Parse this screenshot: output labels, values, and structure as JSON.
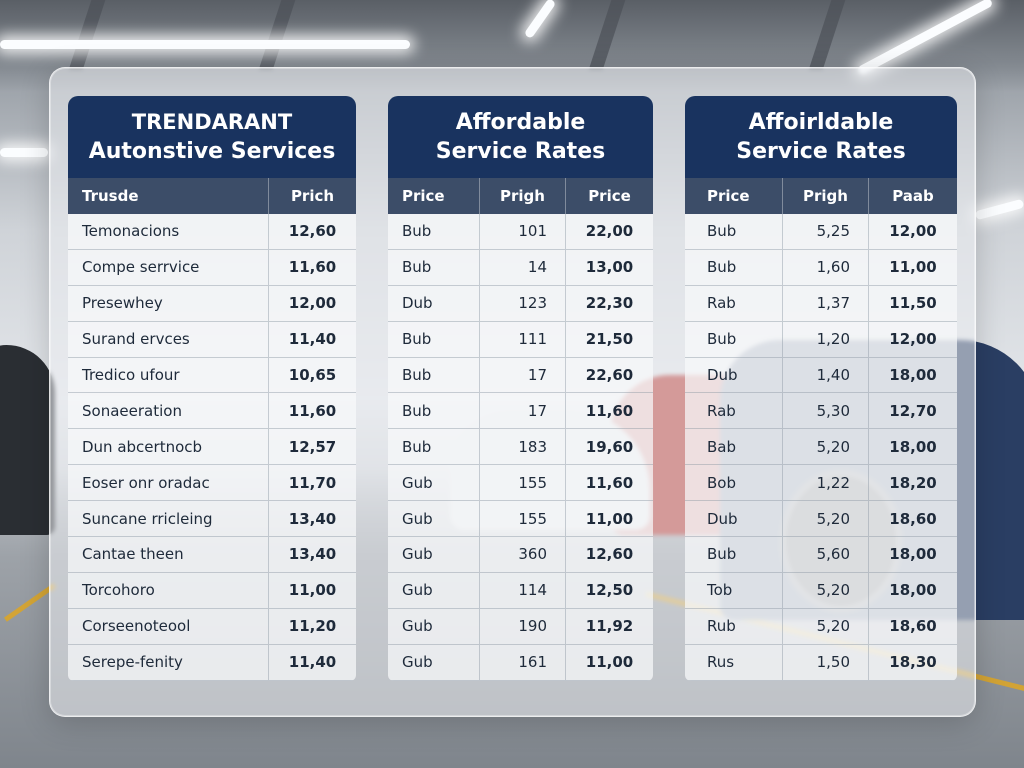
{
  "colors": {
    "header_navy": "#19335f",
    "subheader_slate": "#3c4d68",
    "cell_text": "#1e2a3a"
  },
  "cards": [
    {
      "title_line1": "Trendarant",
      "title_line2": "Autonstive Services",
      "headers": [
        "Trusde",
        "Prich"
      ],
      "rows": [
        [
          "Temonacions",
          "12,60"
        ],
        [
          "Compe serrvice",
          "11,60"
        ],
        [
          "Presewhey",
          "12,00"
        ],
        [
          "Surand ervces",
          "11,40"
        ],
        [
          "Tredico ufour",
          "10,65"
        ],
        [
          "Sonaeeration",
          "11,60"
        ],
        [
          "Dun abcertnocb",
          "12,57"
        ],
        [
          "Eoser onr oradac",
          "11,70"
        ],
        [
          "Suncane rricleing",
          "13,40"
        ],
        [
          "Cantae theen",
          "13,40"
        ],
        [
          "Torcohoro",
          "11,00"
        ],
        [
          "Corseenoteool",
          "11,20"
        ],
        [
          "Serepe-fenity",
          "11,40"
        ]
      ]
    },
    {
      "title_line1": "Affordable",
      "title_line2": "Service Rates",
      "headers": [
        "Price",
        "Prigh",
        "Price"
      ],
      "rows": [
        [
          "Bub",
          "101",
          "22,00"
        ],
        [
          "Bub",
          "14",
          "13,00"
        ],
        [
          "Dub",
          "123",
          "22,30"
        ],
        [
          "Bub",
          "111",
          "21,50"
        ],
        [
          "Bub",
          "17",
          "22,60"
        ],
        [
          "Bub",
          "17",
          "11,60"
        ],
        [
          "Bub",
          "183",
          "19,60"
        ],
        [
          "Gub",
          "155",
          "11,60"
        ],
        [
          "Gub",
          "155",
          "11,00"
        ],
        [
          "Gub",
          "360",
          "12,60"
        ],
        [
          "Gub",
          "114",
          "12,50"
        ],
        [
          "Gub",
          "190",
          "11,92"
        ],
        [
          "Gub",
          "161",
          "11,00"
        ]
      ]
    },
    {
      "title_line1": "Affoirldable",
      "title_line2": "Service Rates",
      "headers": [
        "Price",
        "Prigh",
        "Paab"
      ],
      "rows": [
        [
          "Bub",
          "5,25",
          "12,00"
        ],
        [
          "Bub",
          "1,60",
          "11,00"
        ],
        [
          "Rab",
          "1,37",
          "11,50"
        ],
        [
          "Bub",
          "1,20",
          "12,00"
        ],
        [
          "Dub",
          "1,40",
          "18,00"
        ],
        [
          "Rab",
          "5,30",
          "12,70"
        ],
        [
          "Bab",
          "5,20",
          "18,00"
        ],
        [
          "Bob",
          "1,22",
          "18,20"
        ],
        [
          "Dub",
          "5,20",
          "18,60"
        ],
        [
          "Bub",
          "5,60",
          "18,00"
        ],
        [
          "Tob",
          "5,20",
          "18,00"
        ],
        [
          "Rub",
          "5,20",
          "18,60"
        ],
        [
          "Rus",
          "1,50",
          "18,30"
        ]
      ]
    }
  ]
}
